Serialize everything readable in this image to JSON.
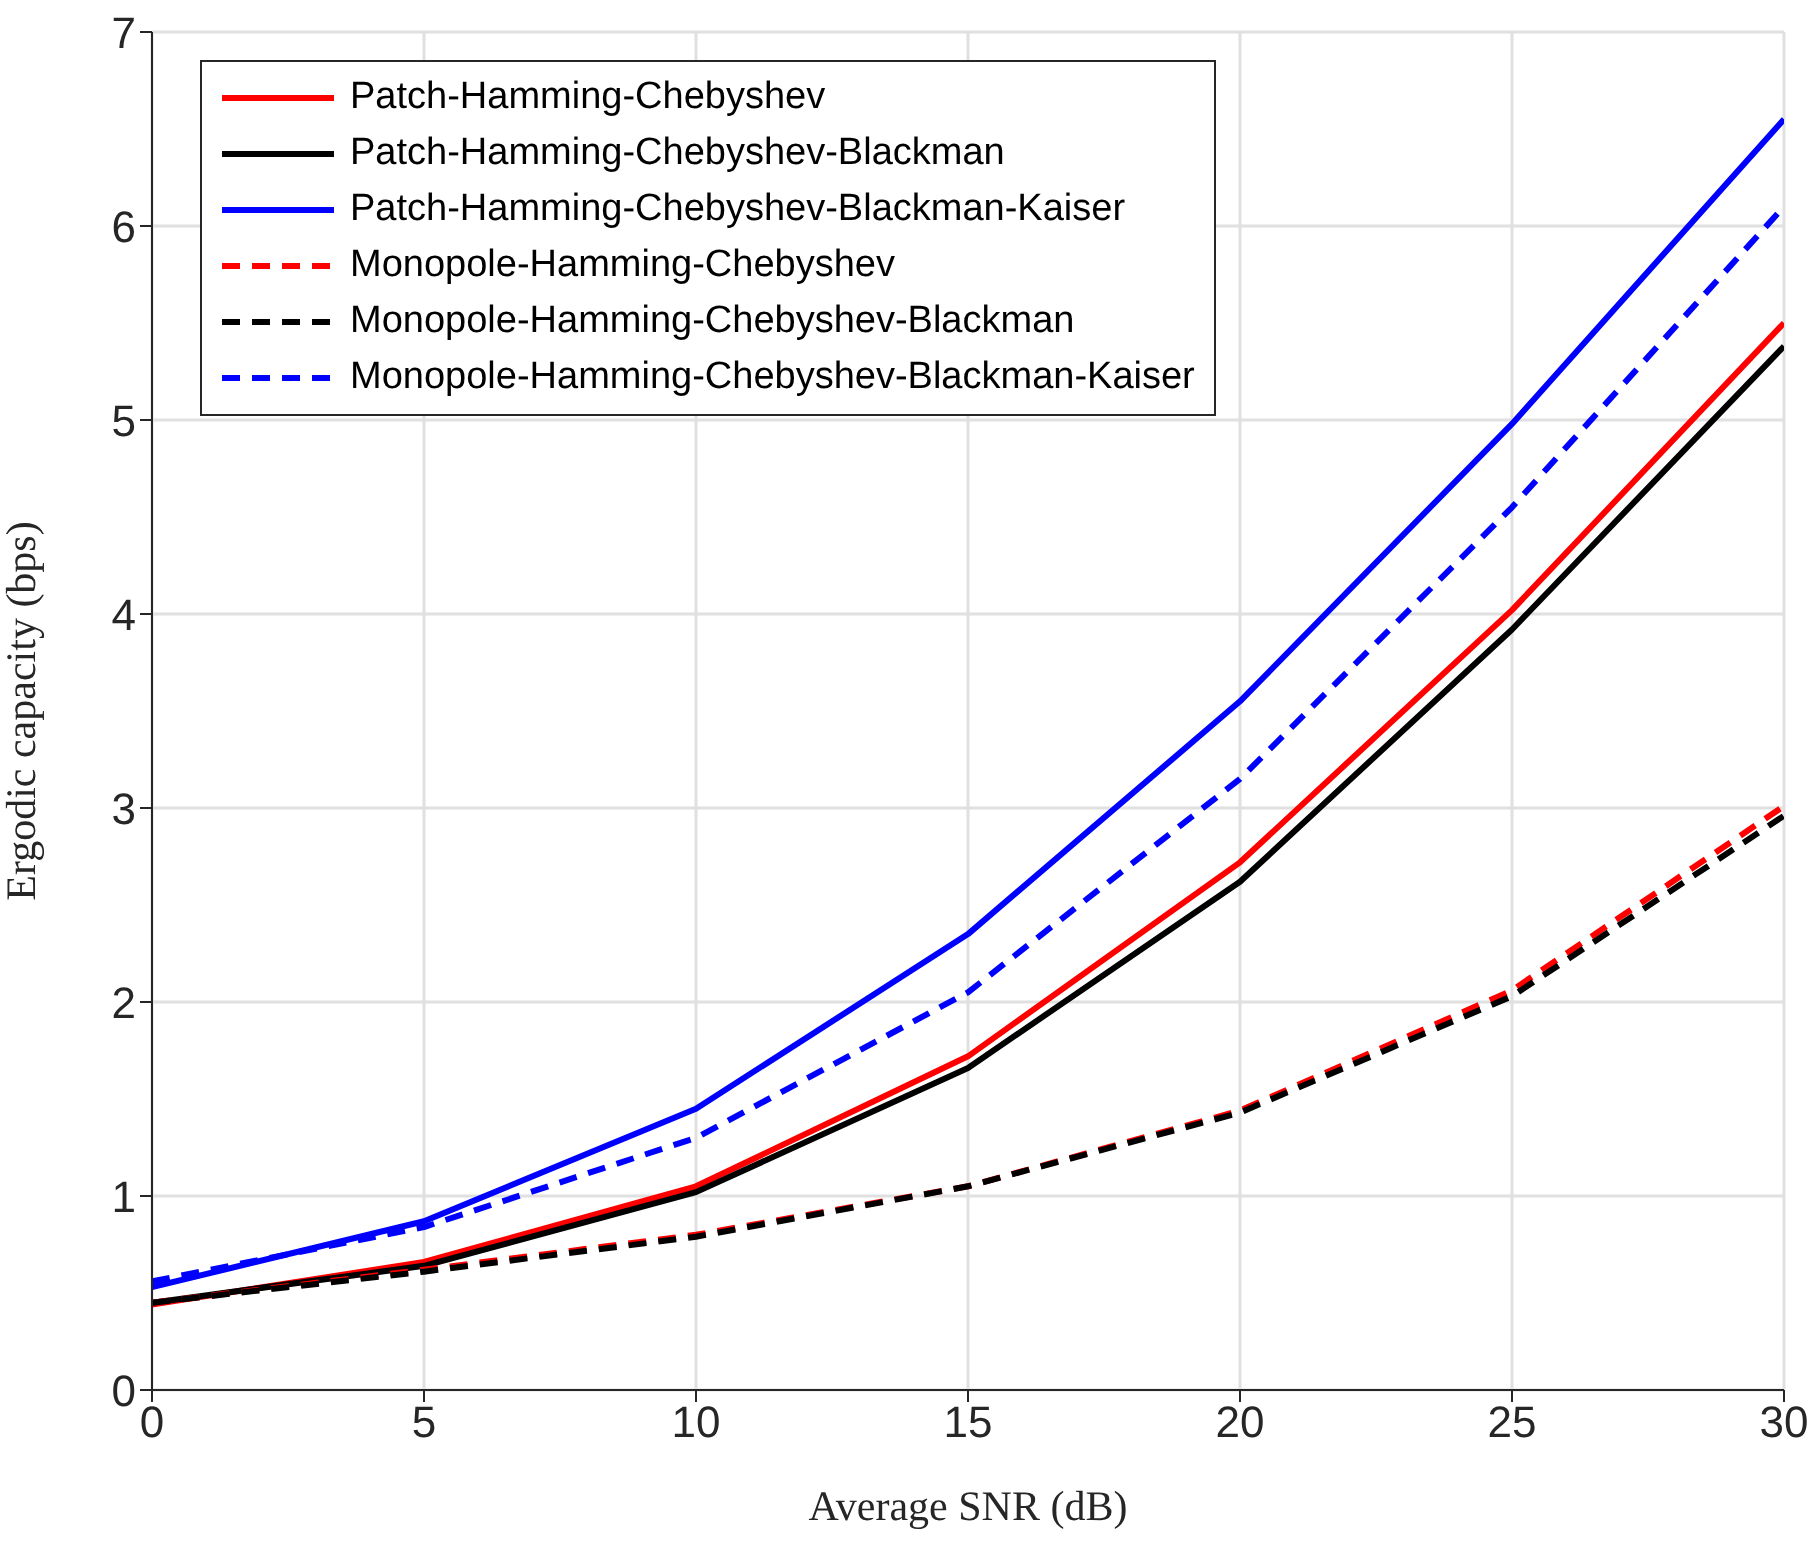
{
  "chart_data": {
    "type": "line",
    "xlabel": "Average SNR (dB)",
    "ylabel": "Ergodic capacity (bps)",
    "x": [
      0,
      5,
      10,
      15,
      20,
      25,
      30
    ],
    "series": [
      {
        "name": "Patch-Hamming-Chebyshev",
        "color": "#ff0000",
        "line_style": "solid",
        "values": [
          0.44,
          0.66,
          1.05,
          1.72,
          2.72,
          4.02,
          5.5
        ]
      },
      {
        "name": "Patch-Hamming-Chebyshev-Blackman",
        "color": "#000000",
        "line_style": "solid",
        "values": [
          0.45,
          0.64,
          1.02,
          1.66,
          2.62,
          3.92,
          5.38
        ]
      },
      {
        "name": "Patch-Hamming-Chebyshev-Blackman-Kaiser",
        "color": "#0000ff",
        "line_style": "solid",
        "values": [
          0.53,
          0.87,
          1.45,
          2.35,
          3.55,
          4.98,
          6.55
        ]
      },
      {
        "name": "Monopole-Hamming-Chebyshev",
        "color": "#ff0000",
        "line_style": "dashed",
        "values": [
          0.45,
          0.62,
          0.8,
          1.05,
          1.44,
          2.06,
          3.01
        ]
      },
      {
        "name": "Monopole-Hamming-Chebyshev-Blackman",
        "color": "#000000",
        "line_style": "dashed",
        "values": [
          0.45,
          0.61,
          0.79,
          1.05,
          1.43,
          2.03,
          2.96
        ]
      },
      {
        "name": "Monopole-Hamming-Chebyshev-Blackman-Kaiser",
        "color": "#0000ff",
        "line_style": "dashed",
        "values": [
          0.56,
          0.84,
          1.3,
          2.05,
          3.15,
          4.55,
          6.1
        ]
      }
    ],
    "xlim": [
      0,
      30
    ],
    "xticks": [
      0,
      5,
      10,
      15,
      20,
      25,
      30
    ],
    "ylim": [
      0,
      7
    ],
    "yticks": [
      0,
      1,
      2,
      3,
      4,
      5,
      6,
      7
    ],
    "grid": true,
    "legend": "top left",
    "marker": "none"
  }
}
